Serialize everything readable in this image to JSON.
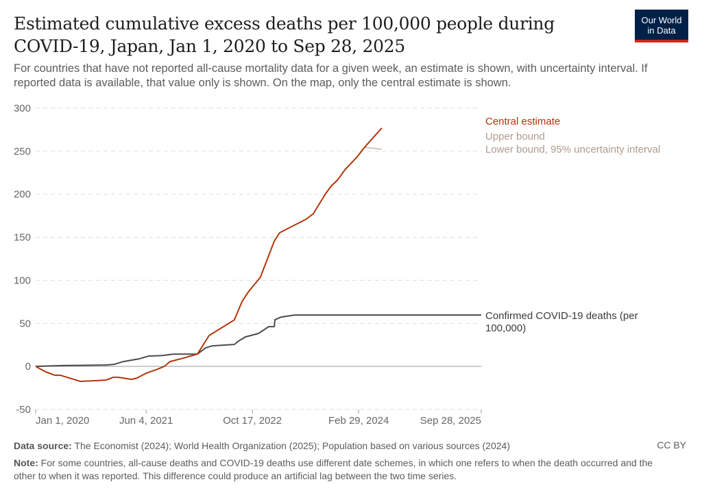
{
  "header": {
    "title": "Estimated cumulative excess deaths per 100,000 people during COVID-19, Japan, Jan 1, 2020 to Sep 28, 2025",
    "subtitle": "For countries that have not reported all-cause mortality data for a given week, an estimate is shown, with uncertainty interval. If reported data is available, that value only is shown. On the map, only the central estimate is shown.",
    "logo": [
      "Our World",
      "in Data"
    ]
  },
  "footer": {
    "data_source_label": "Data source:",
    "data_source": " The Economist (2024); World Health Organization (2025); Population based on various sources (2024)",
    "license": "CC BY",
    "note_label": "Note:",
    "note": " For some countries, all-cause deaths and COVID-19 deaths use different date schemes, in which one refers to when the death occurred and the other to when it was reported. This difference could produce an artificial lag between the two time series."
  },
  "colors": {
    "central": "#b13507",
    "bounds": "#c9b3a6",
    "confirmed": "#4a4a4a",
    "grid": "#dddddd",
    "zero": "#999999"
  },
  "chart_data": {
    "type": "line",
    "ylim": [
      -50,
      300
    ],
    "yticks": [
      -50,
      0,
      50,
      100,
      150,
      200,
      250,
      300
    ],
    "xlim": [
      "2020-01-01",
      "2025-09-28"
    ],
    "xticks": [
      {
        "date": "2020-01-01",
        "label": "Jan 1, 2020"
      },
      {
        "date": "2021-06-04",
        "label": "Jun 4, 2021"
      },
      {
        "date": "2022-10-17",
        "label": "Oct 17, 2022"
      },
      {
        "date": "2024-02-29",
        "label": "Feb 29, 2024"
      },
      {
        "date": "2025-09-28",
        "label": "Sep 28, 2025"
      }
    ],
    "grid": true,
    "legend_placement": "right (inline labels)",
    "series": [
      {
        "name": "Central estimate",
        "key": "central",
        "points": [
          [
            "2020-01-01",
            0
          ],
          [
            "2020-02-18",
            -6.4
          ],
          [
            "2020-03-31",
            -10.3
          ],
          [
            "2020-04-26",
            -10.3
          ],
          [
            "2020-07-29",
            -17.5
          ],
          [
            "2020-10-01",
            -16.7
          ],
          [
            "2020-11-28",
            -15.9
          ],
          [
            "2020-12-31",
            -12.7
          ],
          [
            "2021-01-25",
            -12.7
          ],
          [
            "2021-03-28",
            -15.1
          ],
          [
            "2021-04-22",
            -13.5
          ],
          [
            "2021-06-03",
            -8
          ],
          [
            "2021-07-28",
            -3.2
          ],
          [
            "2021-08-29",
            0
          ],
          [
            "2021-09-24",
            5.6
          ],
          [
            "2021-11-25",
            9.5
          ],
          [
            "2022-01-31",
            14.3
          ],
          [
            "2022-03-27",
            35.8
          ],
          [
            "2022-07-24",
            54
          ],
          [
            "2022-08-29",
            75.2
          ],
          [
            "2022-09-27",
            86.3
          ],
          [
            "2022-11-24",
            103.8
          ],
          [
            "2023-01-28",
            145.6
          ],
          [
            "2023-02-22",
            155.2
          ],
          [
            "2023-04-25",
            163.1
          ],
          [
            "2023-06-28",
            171.1
          ],
          [
            "2023-07-31",
            177.5
          ],
          [
            "2023-09-26",
            200.5
          ],
          [
            "2023-10-22",
            209.3
          ],
          [
            "2023-11-24",
            217.2
          ],
          [
            "2023-12-26",
            228.3
          ],
          [
            "2024-02-19",
            242.6
          ],
          [
            "2024-03-28",
            254.6
          ],
          [
            "2024-06-17",
            276.9
          ]
        ]
      },
      {
        "name": "Upper bound",
        "key": "bounds",
        "points": [
          [
            "2024-03-28",
            254.6
          ],
          [
            "2024-06-17",
            276.9
          ]
        ]
      },
      {
        "name": "Lower bound, 95% uncertainty interval",
        "key": "bounds",
        "points": [
          [
            "2024-03-28",
            254.6
          ],
          [
            "2024-06-17",
            252.2
          ]
        ]
      },
      {
        "name": "Confirmed COVID-19 deaths (per 100,000)",
        "key": "confirmed",
        "points": [
          [
            "2020-01-01",
            0
          ],
          [
            "2020-05-11",
            1
          ],
          [
            "2020-11-28",
            1.6
          ],
          [
            "2021-01-06",
            2.4
          ],
          [
            "2021-02-17",
            5.6
          ],
          [
            "2021-04-13",
            8
          ],
          [
            "2021-05-02",
            8.8
          ],
          [
            "2021-06-16",
            12
          ],
          [
            "2021-08-20",
            12.7
          ],
          [
            "2021-10-10",
            14.3
          ],
          [
            "2022-01-31",
            14.3
          ],
          [
            "2022-03-11",
            21.5
          ],
          [
            "2022-04-12",
            23.9
          ],
          [
            "2022-07-24",
            25.5
          ],
          [
            "2022-08-13",
            29.4
          ],
          [
            "2022-09-14",
            34.2
          ],
          [
            "2022-11-14",
            38.2
          ],
          [
            "2022-12-04",
            41.4
          ],
          [
            "2023-01-02",
            46.2
          ],
          [
            "2023-01-28",
            46.2
          ],
          [
            "2023-01-31",
            54.1
          ],
          [
            "2023-03-01",
            57.3
          ],
          [
            "2023-05-04",
            59.7
          ],
          [
            "2025-09-28",
            59.7
          ]
        ]
      }
    ],
    "labels": {
      "central": "Central estimate",
      "upper": "Upper bound",
      "lower": "Lower bound, 95% uncertainty interval",
      "confirmed_1": "Confirmed COVID-19 deaths (per",
      "confirmed_2": "100,000)"
    }
  }
}
